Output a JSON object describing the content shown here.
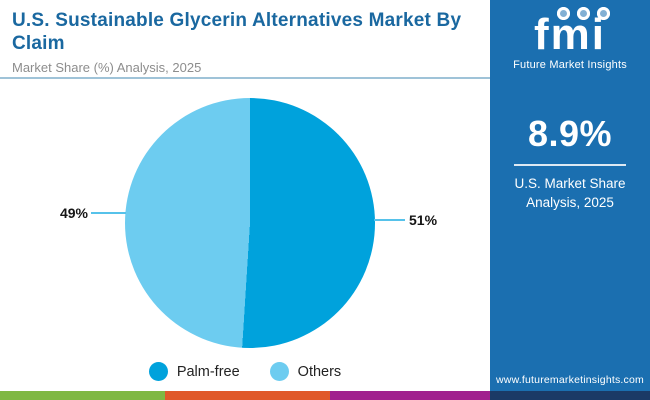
{
  "header": {
    "title": "U.S. Sustainable Glycerin Alternatives Market By Claim",
    "subtitle": "Market Share (%) Analysis, 2025"
  },
  "chart_data": {
    "type": "pie",
    "title": "U.S. Sustainable Glycerin Alternatives Market By Claim",
    "subtitle": "Market Share (%) Analysis, 2025",
    "unit": "percent",
    "slices": [
      {
        "label": "Palm-free",
        "value": 51,
        "data_label": "51%",
        "color": "#00a2dc"
      },
      {
        "label": "Others",
        "value": 49,
        "data_label": "49%",
        "color": "#6dccf0"
      }
    ],
    "start_angle_deg": 0,
    "direction": "clockwise",
    "legend_position": "bottom",
    "callout_line_color": "#56c2ea"
  },
  "sidebar": {
    "logo_text": "fmi",
    "logo_subtext": "Future Market Insights",
    "logo_icons": [
      "us-map-icon",
      "globe-icon",
      "globe-pin-icon"
    ],
    "stat_value": "8.9%",
    "stat_caption": "U.S. Market Share Analysis, 2025",
    "website": "www.futuremarketinsights.com",
    "bg_color": "#1b6fb0"
  },
  "footer": {
    "colors": [
      "#7fb843",
      "#e0592a",
      "#a1218e",
      "#1b3a66"
    ]
  },
  "theme": {
    "title_color": "#1a68a0",
    "subtitle_color": "#8d8d8d",
    "header_rule_color": "#9fc3d8"
  }
}
